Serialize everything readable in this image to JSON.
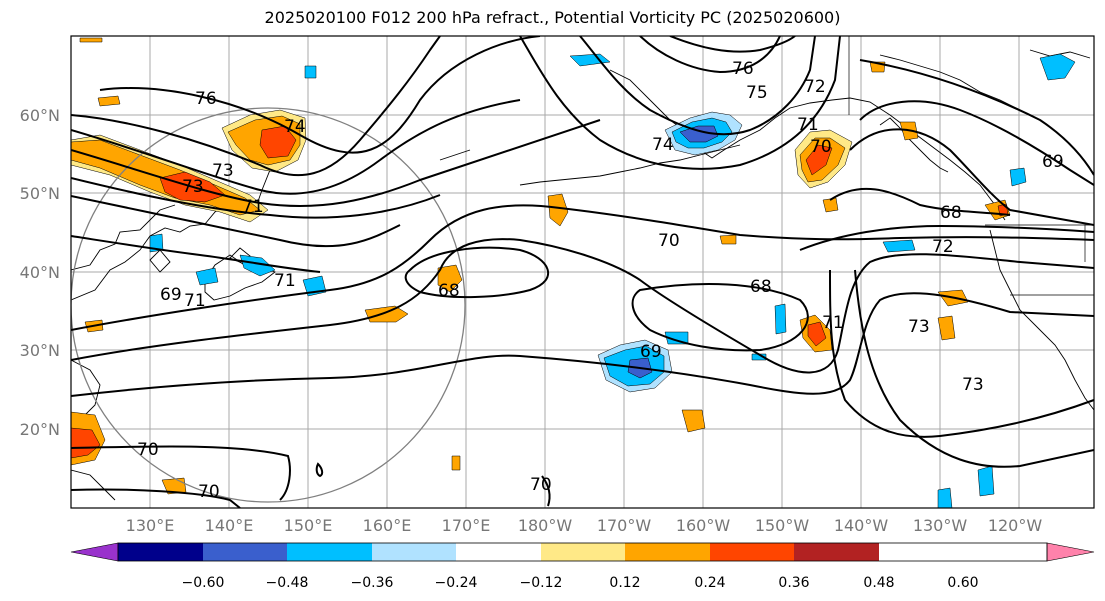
{
  "title": "2025020100 F012 200 hPa refract., Potential Vorticity PC (2025020600)",
  "lat_labels": [
    "60°N",
    "50°N",
    "40°N",
    "30°N",
    "20°N"
  ],
  "lon_labels": [
    "130°E",
    "140°E",
    "150°E",
    "160°E",
    "170°E",
    "180°W",
    "170°W",
    "160°W",
    "150°W",
    "140°W",
    "130°W",
    "120°W"
  ],
  "colorbar": {
    "colors": [
      "#9932cc",
      "#00008b",
      "#3a5fcd",
      "#00bfff",
      "#b0e2ff",
      "#ffffff",
      "#ffe987",
      "#ffa500",
      "#ff4500",
      "#b22222",
      "#ff82ab"
    ],
    "ticks": [
      "−0.60",
      "−0.48",
      "−0.36",
      "−0.24",
      "−0.12",
      "0.12",
      "0.24",
      "0.36",
      "0.48",
      "0.60"
    ]
  },
  "contour_labels": [
    "76",
    "76",
    "75",
    "72",
    "74",
    "74",
    "71",
    "70",
    "73",
    "69",
    "68",
    "72",
    "70",
    "68",
    "69",
    "71",
    "73",
    "73",
    "71",
    "69",
    "68",
    "71",
    "73",
    "70",
    "70",
    "70",
    "71"
  ]
}
